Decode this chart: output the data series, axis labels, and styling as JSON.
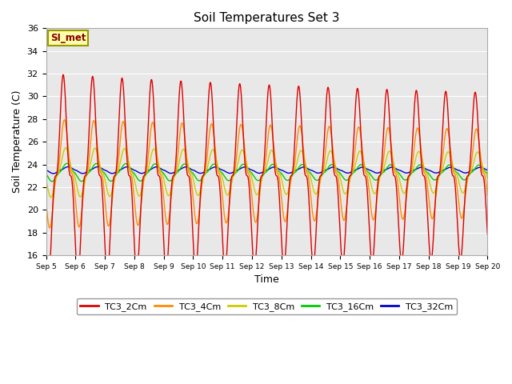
{
  "title": "Soil Temperatures Set 3",
  "xlabel": "Time",
  "ylabel": "Soil Temperature (C)",
  "ylim": [
    16,
    36
  ],
  "annotation": "SI_met",
  "series": [
    "TC3_2Cm",
    "TC3_4Cm",
    "TC3_8Cm",
    "TC3_16Cm",
    "TC3_32Cm"
  ],
  "colors": [
    "#dd0000",
    "#ff8c00",
    "#cccc00",
    "#00cc00",
    "#0000cc"
  ],
  "x_tick_labels": [
    "Sep 5",
    "Sep 6",
    "Sep 7",
    "Sep 8",
    "Sep 9",
    "Sep 10",
    "Sep 11",
    "Sep 12",
    "Sep 13",
    "Sep 14",
    "Sep 15",
    "Sep 16",
    "Sep 17",
    "Sep 18",
    "Sep 19",
    "Sep 20"
  ],
  "background_color": "#e8e8e8",
  "figure_color": "#ffffff"
}
